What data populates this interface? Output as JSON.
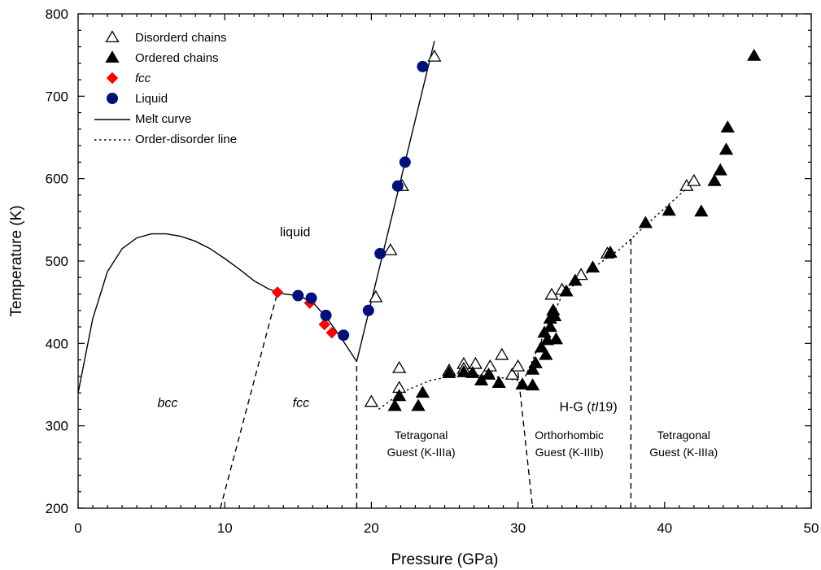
{
  "chart_data": {
    "type": "scatter",
    "xlabel": "Pressure (GPa)",
    "ylabel": "Temperature (K)",
    "xlim": [
      0,
      50
    ],
    "ylim": [
      200,
      800
    ],
    "x_ticks": [
      "0",
      "10",
      "20",
      "30",
      "40",
      "50"
    ],
    "y_ticks": [
      "200",
      "300",
      "400",
      "500",
      "600",
      "700",
      "800"
    ],
    "grid": false,
    "legend_position": "top-left",
    "legend": [
      {
        "label": "Disorderd chains",
        "marker": "open-triangle"
      },
      {
        "label": "Ordered chains",
        "marker": "filled-triangle"
      },
      {
        "label": "fcc",
        "marker": "red-diamond",
        "italic": true
      },
      {
        "label": "Liquid",
        "marker": "navy-circle"
      },
      {
        "label": "Melt curve",
        "marker": "solid-line"
      },
      {
        "label": "Order-disorder line",
        "marker": "dotted-line"
      }
    ],
    "colors": {
      "fcc": "#ff0000",
      "liquid": "#00107a",
      "markers": "#000000"
    },
    "series": [
      {
        "name": "Disorderd chains",
        "points": [
          [
            24.3,
            748
          ],
          [
            22.1,
            591
          ],
          [
            21.3,
            513
          ],
          [
            20.3,
            456
          ],
          [
            20.0,
            329
          ],
          [
            21.9,
            346
          ],
          [
            21.9,
            370
          ],
          [
            25.3,
            367
          ],
          [
            26.3,
            375
          ],
          [
            26.3,
            369
          ],
          [
            27.1,
            375
          ],
          [
            27.9,
            366
          ],
          [
            28.1,
            372
          ],
          [
            28.9,
            386
          ],
          [
            29.6,
            362
          ],
          [
            30.0,
            372
          ],
          [
            32.3,
            459
          ],
          [
            33.0,
            465
          ],
          [
            34.3,
            483
          ],
          [
            36.1,
            509
          ],
          [
            41.5,
            591
          ],
          [
            42.0,
            597
          ]
        ]
      },
      {
        "name": "Ordered chains",
        "points": [
          [
            21.6,
            324
          ],
          [
            21.9,
            336
          ],
          [
            23.2,
            324
          ],
          [
            23.5,
            340
          ],
          [
            25.3,
            364
          ],
          [
            26.3,
            365
          ],
          [
            26.9,
            364
          ],
          [
            27.5,
            355
          ],
          [
            28.0,
            362
          ],
          [
            28.7,
            352
          ],
          [
            30.3,
            350
          ],
          [
            31.0,
            349
          ],
          [
            31.0,
            368
          ],
          [
            31.2,
            376
          ],
          [
            31.6,
            395
          ],
          [
            31.8,
            413
          ],
          [
            31.9,
            386
          ],
          [
            32.0,
            404
          ],
          [
            32.2,
            430
          ],
          [
            32.2,
            420
          ],
          [
            32.4,
            440
          ],
          [
            32.5,
            433
          ],
          [
            32.6,
            405
          ],
          [
            33.3,
            463
          ],
          [
            33.9,
            476
          ],
          [
            35.1,
            492
          ],
          [
            36.3,
            510
          ],
          [
            38.7,
            546
          ],
          [
            40.3,
            561
          ],
          [
            42.5,
            560
          ],
          [
            43.4,
            597
          ],
          [
            43.8,
            610
          ],
          [
            44.2,
            635
          ],
          [
            44.3,
            662
          ],
          [
            46.1,
            749
          ]
        ]
      },
      {
        "name": "fcc",
        "points": [
          [
            13.6,
            462
          ],
          [
            15.8,
            449
          ],
          [
            16.8,
            423
          ],
          [
            17.3,
            413
          ]
        ]
      },
      {
        "name": "Liquid",
        "points": [
          [
            23.5,
            736
          ],
          [
            22.3,
            620
          ],
          [
            21.8,
            591
          ],
          [
            20.6,
            509
          ],
          [
            19.8,
            440
          ],
          [
            15.0,
            458
          ],
          [
            15.9,
            455
          ],
          [
            16.9,
            434
          ],
          [
            18.1,
            410
          ]
        ]
      }
    ],
    "lines": [
      {
        "name": "Melt curve",
        "style": "solid",
        "segments": [
          [
            [
              0,
              340
            ],
            [
              1,
              430
            ],
            [
              2,
              487
            ],
            [
              3,
              515
            ],
            [
              4,
              528
            ],
            [
              5,
              533
            ],
            [
              6,
              533
            ],
            [
              7,
              530
            ],
            [
              8,
              524
            ],
            [
              9,
              515
            ],
            [
              10,
              503
            ],
            [
              11,
              490
            ],
            [
              12,
              476
            ],
            [
              13,
              466
            ],
            [
              14,
              460
            ],
            [
              15,
              458
            ],
            [
              16,
              450
            ],
            [
              17,
              430
            ],
            [
              18,
              405
            ],
            [
              19,
              378
            ]
          ],
          [
            [
              19,
              378
            ],
            [
              24.3,
              767
            ]
          ]
        ]
      },
      {
        "name": "Phase boundaries",
        "style": "dashed",
        "segments": [
          [
            [
              9.7,
              200
            ],
            [
              13.6,
              462
            ]
          ],
          [
            [
              19,
              200
            ],
            [
              19,
              378
            ]
          ],
          [
            [
              30.0,
              365
            ],
            [
              31.0,
              200
            ]
          ],
          [
            [
              37.7,
              200
            ],
            [
              37.7,
              532
            ]
          ]
        ]
      },
      {
        "name": "Order-disorder line",
        "style": "dotted",
        "segments": [
          [
            [
              20.5,
              320
            ],
            [
              22,
              340
            ],
            [
              24,
              355
            ],
            [
              26,
              362
            ],
            [
              28,
              361
            ],
            [
              30,
              355
            ]
          ],
          [
            [
              30.5,
              360
            ],
            [
              32.0,
              420
            ],
            [
              33,
              458
            ],
            [
              35,
              490
            ],
            [
              37,
              515
            ],
            [
              38.5,
              540
            ],
            [
              41.5,
              588
            ],
            [
              42.2,
              598
            ]
          ]
        ]
      }
    ],
    "annotations": [
      {
        "text": "liquid",
        "x": 14.8,
        "y": 530,
        "style": "region"
      },
      {
        "text": "bcc",
        "x": 6.1,
        "y": 323,
        "style": "region",
        "italic": true
      },
      {
        "text": "fcc",
        "x": 15.2,
        "y": 323,
        "style": "region",
        "italic": true
      },
      {
        "text": "H-G (tI19)",
        "x": 34.8,
        "y": 318,
        "style": "region",
        "parts": [
          {
            "t": "H-G ("
          },
          {
            "t": "tI",
            "italic": true
          },
          {
            "t": "19)"
          }
        ]
      },
      {
        "text": "Tetragonal",
        "x": 23.4,
        "y": 284,
        "style": "region-small"
      },
      {
        "text": "Guest (K-IIIa)",
        "x": 23.4,
        "y": 263,
        "style": "region-small"
      },
      {
        "text": "Orthorhombic",
        "x": 33.5,
        "y": 284,
        "style": "region-small"
      },
      {
        "text": "Guest (K-IIIb)",
        "x": 33.5,
        "y": 263,
        "style": "region-small"
      },
      {
        "text": "Tetragonal",
        "x": 41.3,
        "y": 284,
        "style": "region-small"
      },
      {
        "text": "Guest (K-IIIa)",
        "x": 41.3,
        "y": 263,
        "style": "region-small"
      }
    ]
  }
}
